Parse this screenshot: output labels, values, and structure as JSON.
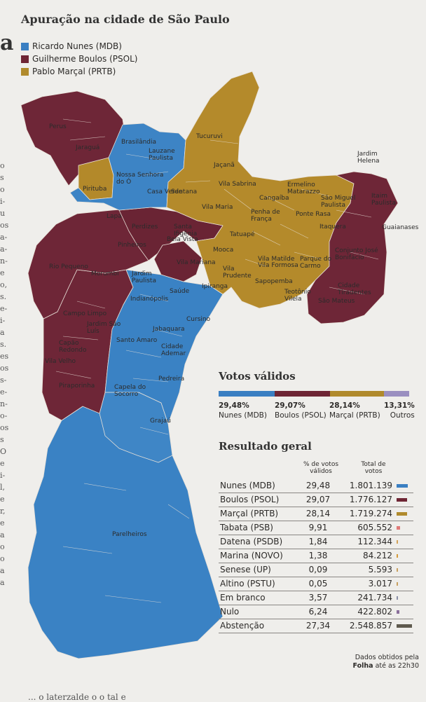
{
  "title": "Apuração na cidade de São Paulo",
  "colors": {
    "mdb": "#3a7fc2",
    "psol": "#6e2534",
    "prtb": "#b08a2c",
    "outros": "#9a8fc0",
    "branco": "#8a8fa8",
    "nulo": "#8a6f9a",
    "abstencao": "#5f5a4e"
  },
  "legend": [
    {
      "label": "Ricardo Nunes (MDB)",
      "color": "#3a7fc2",
      "icon": "square-swatch"
    },
    {
      "label": "Guilherme Boulos (PSOL)",
      "color": "#6e2534",
      "icon": "square-swatch"
    },
    {
      "label": "Pablo Marçal (PRTB)",
      "color": "#b08a2c",
      "icon": "square-swatch"
    }
  ],
  "map_labels": [
    "Perus",
    "Jaraguá",
    "Brasilândia",
    "Lauzane Paulista",
    "Tucuruvi",
    "Jaçanã",
    "Nossa Senhora do Ó",
    "Pirituba",
    "Casa Verde",
    "Santana",
    "Vila Sabrina",
    "Vila Maria",
    "Ermelino Matarazzo",
    "São Miguel Paulista",
    "Jardim Helena",
    "Itaim Paulista",
    "Guaianases",
    "Cangaíba",
    "Penha de França",
    "Ponte Rasa",
    "Itaquera",
    "Lapa",
    "Perdizes",
    "Santa Ifigênia",
    "Pinheiros",
    "Bela Vista",
    "Tatuapé",
    "Vila Matilde",
    "Conjunto José Bonifácio",
    "Rio Pequeno",
    "Morumbi",
    "Vila Mariana",
    "Mooca",
    "Vila Formosa",
    "Parque do Carmo",
    "Jardim Paulista",
    "Saúde",
    "Ipiranga",
    "Vila Prudente",
    "Sapopemba",
    "Teotônio Vilela",
    "São Mateus",
    "Cidade Tiradentes",
    "Indianópolis",
    "Cursino",
    "Campo Limpo",
    "Jardim São Luís",
    "Capão Redondo",
    "Jabaquara",
    "Santo Amaro",
    "Cidade Ademar",
    "Vila Velho",
    "Pedreira",
    "Piraporinha",
    "Capela do Socorro",
    "Grajaú",
    "Parelheiros"
  ],
  "votos_validos": {
    "title": "Votos válidos",
    "items": [
      {
        "pct": "29,48%",
        "name": "Nunes (MDB)",
        "value": 29.48,
        "color": "#3a7fc2"
      },
      {
        "pct": "29,07%",
        "name": "Boulos (PSOL)",
        "value": 29.07,
        "color": "#6e2534"
      },
      {
        "pct": "28,14%",
        "name": "Marçal (PRTB)",
        "value": 28.14,
        "color": "#b08a2c"
      },
      {
        "pct": "13,31%",
        "name": "Outros",
        "value": 13.31,
        "color": "#9a8fc0"
      }
    ]
  },
  "resultado": {
    "title": "Resultado geral",
    "col_pct": "% de votos válidos",
    "col_total": "Total de votos",
    "rows": [
      {
        "name": "Nunes (MDB)",
        "pct": "29,48",
        "total": "1.801.139",
        "votes": 1801139,
        "color": "#3a7fc2"
      },
      {
        "name": "Boulos (PSOL)",
        "pct": "29,07",
        "total": "1.776.127",
        "votes": 1776127,
        "color": "#6e2534"
      },
      {
        "name": "Marçal (PRTB)",
        "pct": "28,14",
        "total": "1.719.274",
        "votes": 1719274,
        "color": "#b08a2c"
      },
      {
        "name": "Tabata (PSB)",
        "pct": "9,91",
        "total": "605.552",
        "votes": 605552,
        "color": "#e07a78"
      },
      {
        "name": "Datena (PSDB)",
        "pct": "1,84",
        "total": "112.344",
        "votes": 112344,
        "color": "#d4a35a"
      },
      {
        "name": "Marina (NOVO)",
        "pct": "1,38",
        "total": "84.212",
        "votes": 84212,
        "color": "#d59a3a"
      },
      {
        "name": "Senese (UP)",
        "pct": "0,09",
        "total": "5.593",
        "votes": 5593,
        "color": "#c9a060"
      },
      {
        "name": "Altino (PSTU)",
        "pct": "0,05",
        "total": "3.017",
        "votes": 3017,
        "color": "#c9a060"
      },
      {
        "name": "Em branco",
        "pct": "3,57",
        "total": "241.734",
        "votes": 241734,
        "color": "#8a8fa8"
      },
      {
        "name": "Nulo",
        "pct": "6,24",
        "total": "422.802",
        "votes": 422802,
        "color": "#8a6f9a"
      },
      {
        "name": "Abstenção",
        "pct": "27,34",
        "total": "2.548.857",
        "votes": 2548857,
        "color": "#5f5a4e"
      }
    ]
  },
  "note_line1": "Dados obtidos pela",
  "note_source": "Folha",
  "note_time": " até as 22h30",
  "edge_glyph": "a",
  "edge_fragments": [
    "o",
    "s",
    "o",
    "i-",
    "u",
    "os",
    "a-",
    "a-",
    "n-",
    "e",
    "o,",
    "s.",
    "e-",
    "i-",
    "a",
    "s.",
    "es",
    "os",
    "s-",
    "e-",
    "n-",
    "o-",
    "os",
    "s",
    "O",
    "e",
    "i-",
    "l,",
    "e",
    "r,",
    "e",
    "a",
    "o",
    "o",
    "a",
    "a"
  ],
  "bottom_text": "... o laterzalde o o tal e"
}
